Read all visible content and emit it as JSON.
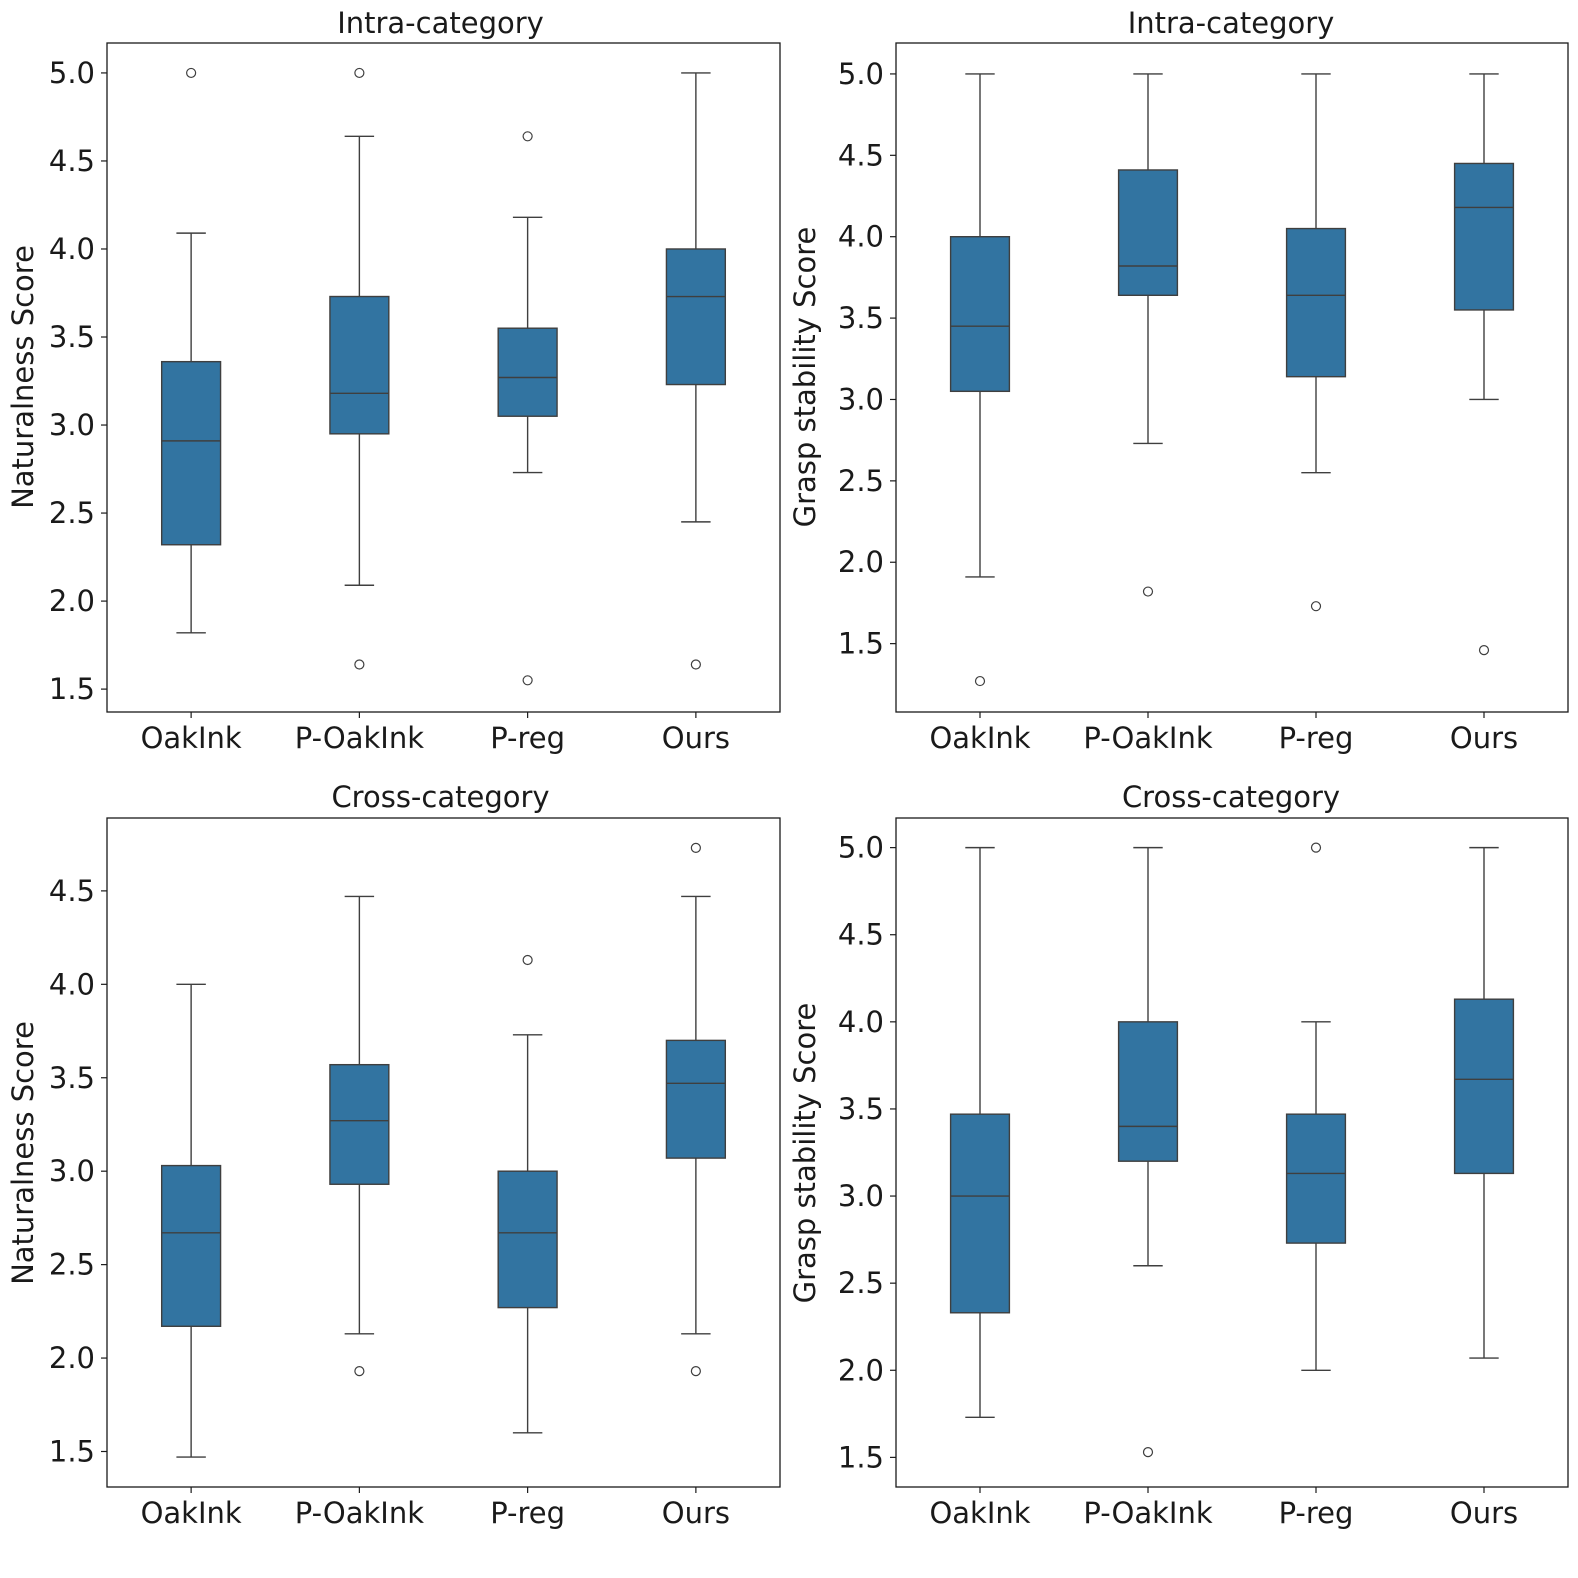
{
  "chart_data": [
    {
      "type": "box",
      "title": "Intra-category",
      "ylabel": "Naturalness Score",
      "xlabel": "",
      "categories": [
        "OakInk",
        "P-OakInk",
        "P-reg",
        "Ours"
      ],
      "ylim": [
        1.37,
        5.17
      ],
      "yticks": [
        1.5,
        2.0,
        2.5,
        3.0,
        3.5,
        4.0,
        4.5,
        5.0
      ],
      "ytick_labels": [
        "1.5",
        "2.0",
        "2.5",
        "3.0",
        "3.5",
        "4.0",
        "4.5",
        "5.0"
      ],
      "color": "#3274a1",
      "boxes": [
        {
          "whislo": 1.82,
          "q1": 2.32,
          "med": 2.91,
          "q3": 3.36,
          "whishi": 4.09,
          "fliers": [
            5.0
          ]
        },
        {
          "whislo": 2.09,
          "q1": 2.95,
          "med": 3.18,
          "q3": 3.73,
          "whishi": 4.64,
          "fliers": [
            5.0,
            1.64
          ]
        },
        {
          "whislo": 2.73,
          "q1": 3.05,
          "med": 3.27,
          "q3": 3.55,
          "whishi": 4.18,
          "fliers": [
            4.64,
            1.55
          ]
        },
        {
          "whislo": 2.45,
          "q1": 3.23,
          "med": 3.73,
          "q3": 4.0,
          "whishi": 5.0,
          "fliers": [
            1.64
          ]
        }
      ]
    },
    {
      "type": "box",
      "title": "Intra-category",
      "ylabel": "Grasp stability Score",
      "xlabel": "",
      "categories": [
        "OakInk",
        "P-OakInk",
        "P-reg",
        "Ours"
      ],
      "ylim": [
        1.08,
        5.19
      ],
      "yticks": [
        1.5,
        2.0,
        2.5,
        3.0,
        3.5,
        4.0,
        4.5,
        5.0
      ],
      "ytick_labels": [
        "1.5",
        "2.0",
        "2.5",
        "3.0",
        "3.5",
        "4.0",
        "4.5",
        "5.0"
      ],
      "color": "#3274a1",
      "boxes": [
        {
          "whislo": 1.91,
          "q1": 3.05,
          "med": 3.45,
          "q3": 4.0,
          "whishi": 5.0,
          "fliers": [
            1.27
          ]
        },
        {
          "whislo": 2.73,
          "q1": 3.64,
          "med": 3.82,
          "q3": 4.41,
          "whishi": 5.0,
          "fliers": [
            1.82
          ]
        },
        {
          "whislo": 2.55,
          "q1": 3.14,
          "med": 3.64,
          "q3": 4.05,
          "whishi": 5.0,
          "fliers": [
            1.73
          ]
        },
        {
          "whislo": 3.0,
          "q1": 3.55,
          "med": 4.18,
          "q3": 4.45,
          "whishi": 5.0,
          "fliers": [
            1.46
          ]
        }
      ]
    },
    {
      "type": "box",
      "title": "Cross-category",
      "ylabel": "Naturalness Score",
      "xlabel": "",
      "categories": [
        "OakInk",
        "P-OakInk",
        "P-reg",
        "Ours"
      ],
      "ylim": [
        1.31,
        4.89
      ],
      "yticks": [
        1.5,
        2.0,
        2.5,
        3.0,
        3.5,
        4.0,
        4.5
      ],
      "ytick_labels": [
        "1.5",
        "2.0",
        "2.5",
        "3.0",
        "3.5",
        "4.0",
        "4.5"
      ],
      "color": "#3274a1",
      "boxes": [
        {
          "whislo": 1.47,
          "q1": 2.17,
          "med": 2.67,
          "q3": 3.03,
          "whishi": 4.0,
          "fliers": []
        },
        {
          "whislo": 2.13,
          "q1": 2.93,
          "med": 3.27,
          "q3": 3.57,
          "whishi": 4.47,
          "fliers": [
            1.93
          ]
        },
        {
          "whislo": 1.6,
          "q1": 2.27,
          "med": 2.67,
          "q3": 3.0,
          "whishi": 3.73,
          "fliers": [
            4.13
          ]
        },
        {
          "whislo": 2.13,
          "q1": 3.07,
          "med": 3.47,
          "q3": 3.7,
          "whishi": 4.47,
          "fliers": [
            4.73,
            1.93
          ]
        }
      ]
    },
    {
      "type": "box",
      "title": "Cross-category",
      "ylabel": "Grasp stability Score",
      "xlabel": "",
      "categories": [
        "OakInk",
        "P-OakInk",
        "P-reg",
        "Ours"
      ],
      "ylim": [
        1.33,
        5.17
      ],
      "yticks": [
        1.5,
        2.0,
        2.5,
        3.0,
        3.5,
        4.0,
        4.5,
        5.0
      ],
      "ytick_labels": [
        "1.5",
        "2.0",
        "2.5",
        "3.0",
        "3.5",
        "4.0",
        "4.5",
        "5.0"
      ],
      "color": "#3274a1",
      "boxes": [
        {
          "whislo": 1.73,
          "q1": 2.33,
          "med": 3.0,
          "q3": 3.47,
          "whishi": 5.0,
          "fliers": []
        },
        {
          "whislo": 2.6,
          "q1": 3.2,
          "med": 3.4,
          "q3": 4.0,
          "whishi": 5.0,
          "fliers": [
            1.53
          ]
        },
        {
          "whislo": 2.0,
          "q1": 2.73,
          "med": 3.13,
          "q3": 3.47,
          "whishi": 4.0,
          "fliers": [
            5.0
          ]
        },
        {
          "whislo": 2.07,
          "q1": 3.13,
          "med": 3.67,
          "q3": 4.13,
          "whishi": 5.0,
          "fliers": []
        }
      ]
    }
  ]
}
